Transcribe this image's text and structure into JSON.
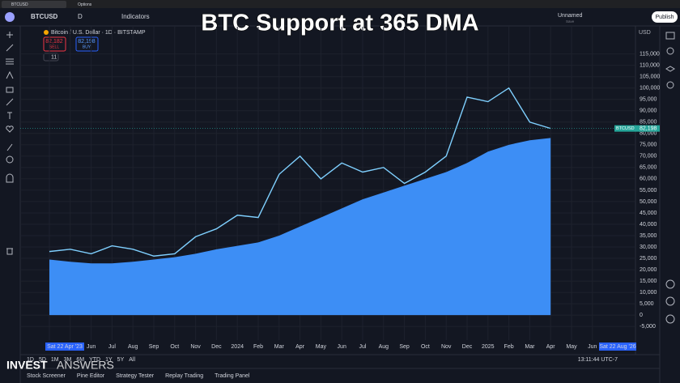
{
  "browser_tabs": [
    "BTCUSD",
    "Options"
  ],
  "toolbar": {
    "symbol": "BTCUSD",
    "interval": "D",
    "indicators": "Indicators",
    "layout_name": "Unnamed",
    "save": "Save",
    "publish": "Publish"
  },
  "overlay_title": "BTC Support at 365 DMA",
  "legend": {
    "symbol_desc": "Bitcoin / U.S. Dollar · 1D · BITSTAMP",
    "sell_price": "82,182",
    "sell": "SELL",
    "buy_price": "82,198",
    "buy": "BUY",
    "indicator_count": "11"
  },
  "chart_data": {
    "type": "line",
    "currency": "USD",
    "categories": [
      null,
      null,
      "Jun",
      "Jul",
      "Aug",
      "Sep",
      "Oct",
      "Nov",
      "Dec",
      "2024",
      "Feb",
      "Mar",
      "Apr",
      "May",
      "Jun",
      "Jul",
      "Aug",
      "Sep",
      "Oct",
      "Nov",
      "Dec",
      "2025",
      "Feb",
      "Mar",
      "Apr",
      "May",
      "Jun"
    ],
    "series": [
      {
        "color": "#3d8ef5",
        "fill": true,
        "values": [
          24500,
          23500,
          22800,
          22800,
          23500,
          24500,
          25500,
          27000,
          29000,
          30500,
          32000,
          35000,
          39000,
          43000,
          47000,
          51000,
          54000,
          57000,
          60000,
          63000,
          67000,
          72000,
          75000,
          77000,
          78000,
          null,
          null
        ]
      },
      {
        "color": "#7fd0ff",
        "fill": false,
        "values": [
          28000,
          29000,
          27000,
          30500,
          29000,
          26000,
          27000,
          34500,
          38000,
          44000,
          43000,
          62000,
          70000,
          60000,
          67000,
          63000,
          65000,
          58000,
          63000,
          70000,
          96000,
          94000,
          100000,
          85000,
          82198,
          null,
          null
        ]
      }
    ],
    "price_tag": {
      "name": "BTCUSD",
      "value": 82198,
      "label": "82,198"
    },
    "range_labels": [
      "Sat 22 Apr '23",
      "Sat 22 Aug '26"
    ],
    "ylim": [
      -11000,
      127000
    ],
    "yticks": [
      {
        "value": -5000,
        "label": "-5,000"
      },
      0,
      {
        "value": 5000,
        "label": "5,000"
      },
      {
        "value": 10000,
        "label": "10,000"
      },
      {
        "value": 15000,
        "label": "15,000"
      },
      {
        "value": 20000,
        "label": "20,000"
      },
      {
        "value": 25000,
        "label": "25,000"
      },
      {
        "value": 30000,
        "label": "30,000"
      },
      {
        "value": 35000,
        "label": "35,000"
      },
      {
        "value": 40000,
        "label": "40,000"
      },
      {
        "value": 45000,
        "label": "45,000"
      },
      {
        "value": 50000,
        "label": "50,000"
      },
      {
        "value": 55000,
        "label": "55,000"
      },
      {
        "value": 60000,
        "label": "60,000"
      },
      {
        "value": 65000,
        "label": "65,000"
      },
      {
        "value": 70000,
        "label": "70,000"
      },
      {
        "value": 75000,
        "label": "75,000"
      },
      {
        "value": 80000,
        "label": "80,000"
      },
      {
        "value": 85000,
        "label": "85,000"
      },
      {
        "value": 90000,
        "label": "90,000"
      },
      {
        "value": 95000,
        "label": "95,000"
      },
      {
        "value": 100000,
        "label": "100,000"
      },
      {
        "value": 105000,
        "label": "105,000"
      },
      {
        "value": 110000,
        "label": "110,000"
      },
      {
        "value": 115000,
        "label": "115,000"
      }
    ],
    "grid": true
  },
  "timeframes": [
    "1D",
    "5D",
    "1M",
    "3M",
    "6M",
    "YTD",
    "1Y",
    "5Y",
    "All"
  ],
  "clock": "13:11:44 UTC-7",
  "bottom_tabs": [
    "Stock Screener",
    "Pine Editor",
    "Strategy Tester",
    "Replay Trading",
    "Trading Panel"
  ],
  "watermark": {
    "bold": "INVEST",
    "light": "ANSWERS"
  }
}
